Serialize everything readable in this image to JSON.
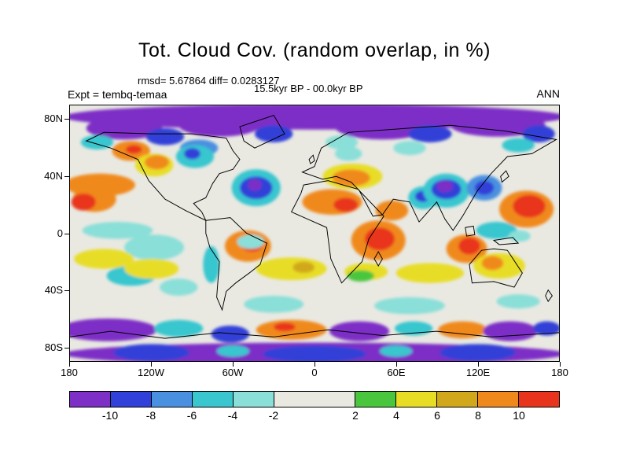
{
  "title": "Tot. Cloud Cov. (random overlap, in %)",
  "stats_line": "rmsd= 5.67864 diff= 0.0283127",
  "period_line": "15.5kyr BP - 00.0kyr BP",
  "experiment_label": "Expt = tembq-temaa",
  "season_label": "ANN",
  "chart_data": {
    "type": "filled_contour_map",
    "projection": "equirectangular",
    "title": "Tot. Cloud Cov. (random overlap, in %)",
    "units": "%",
    "lon_range": [
      -180,
      180
    ],
    "lat_range": [
      -90,
      90
    ],
    "x_ticks": [
      "180",
      "120W",
      "60W",
      "0",
      "60E",
      "120E",
      "180"
    ],
    "y_ticks": [
      "80N",
      "40N",
      "0",
      "40S",
      "80S"
    ],
    "y_tick_lats": [
      80,
      40,
      0,
      -40,
      -80
    ],
    "colorbar": {
      "labels": [
        "-10",
        "-8",
        "-6",
        "-4",
        "-2",
        "2",
        "4",
        "6",
        "8",
        "10"
      ],
      "colors": [
        "#7D2FC6",
        "#3140D8",
        "#4A90E0",
        "#39C6CF",
        "#8ADFD8",
        "#E9E9E2",
        "#49C63E",
        "#E8DD25",
        "#D1A81C",
        "#F0891C",
        "#E8341C"
      ],
      "widths": [
        1,
        1,
        1,
        1,
        1,
        2,
        1,
        1,
        1,
        1,
        1
      ],
      "neutral_color": "#E9E9E2"
    },
    "regions": [
      [
        180,
        8,
        185,
        9,
        0
      ],
      [
        40,
        16,
        28,
        8,
        0
      ],
      [
        110,
        14,
        30,
        8,
        0
      ],
      [
        230,
        15,
        35,
        9,
        0
      ],
      [
        315,
        14,
        35,
        8,
        0
      ],
      [
        70,
        22,
        14,
        6,
        1
      ],
      [
        150,
        20,
        14,
        6,
        1
      ],
      [
        265,
        20,
        16,
        6,
        1
      ],
      [
        345,
        20,
        12,
        6,
        1
      ],
      [
        20,
        26,
        12,
        5,
        3
      ],
      [
        95,
        30,
        14,
        6,
        2
      ],
      [
        200,
        26,
        12,
        5,
        4
      ],
      [
        205,
        34,
        10,
        5,
        4
      ],
      [
        250,
        30,
        12,
        5,
        4
      ],
      [
        330,
        28,
        12,
        5,
        3
      ],
      [
        45,
        32,
        14,
        7,
        9
      ],
      [
        47,
        31,
        6,
        3,
        10
      ],
      [
        22,
        56,
        26,
        8,
        9
      ],
      [
        18,
        66,
        16,
        9,
        9
      ],
      [
        10,
        68,
        9,
        6,
        10
      ],
      [
        62,
        42,
        14,
        8,
        7
      ],
      [
        64,
        40,
        9,
        5,
        9
      ],
      [
        92,
        36,
        14,
        8,
        3
      ],
      [
        90,
        34,
        6,
        4,
        1
      ],
      [
        137,
        58,
        18,
        13,
        3
      ],
      [
        137,
        58,
        12,
        8,
        1
      ],
      [
        136,
        56,
        5,
        4,
        0
      ],
      [
        208,
        50,
        22,
        9,
        7
      ],
      [
        207,
        51,
        14,
        6,
        9
      ],
      [
        193,
        68,
        22,
        9,
        9
      ],
      [
        203,
        70,
        9,
        5,
        10
      ],
      [
        237,
        74,
        12,
        7,
        9
      ],
      [
        260,
        65,
        11,
        8,
        3
      ],
      [
        260,
        64,
        6,
        4,
        1
      ],
      [
        227,
        95,
        20,
        14,
        9
      ],
      [
        228,
        94,
        11,
        8,
        10
      ],
      [
        277,
        60,
        17,
        12,
        3
      ],
      [
        277,
        59,
        11,
        7,
        1
      ],
      [
        276,
        57,
        6,
        4,
        0
      ],
      [
        305,
        58,
        13,
        9,
        2
      ],
      [
        305,
        58,
        7,
        5,
        1
      ],
      [
        336,
        73,
        20,
        13,
        9
      ],
      [
        338,
        71,
        12,
        8,
        10
      ],
      [
        131,
        99,
        17,
        11,
        9
      ],
      [
        134,
        98,
        8,
        5,
        10
      ],
      [
        104,
        112,
        6,
        13,
        3
      ],
      [
        133,
        96,
        10,
        5,
        4
      ],
      [
        163,
        115,
        26,
        8,
        7
      ],
      [
        172,
        114,
        8,
        4,
        8
      ],
      [
        218,
        117,
        16,
        6,
        7
      ],
      [
        214,
        120,
        10,
        4,
        6
      ],
      [
        265,
        118,
        25,
        7,
        7
      ],
      [
        292,
        101,
        15,
        10,
        9
      ],
      [
        294,
        99,
        8,
        6,
        10
      ],
      [
        316,
        113,
        19,
        9,
        7
      ],
      [
        311,
        111,
        8,
        5,
        9
      ],
      [
        314,
        88,
        15,
        6,
        3
      ],
      [
        331,
        92,
        8,
        4,
        4
      ],
      [
        35,
        88,
        26,
        6,
        4
      ],
      [
        62,
        100,
        22,
        9,
        4
      ],
      [
        45,
        120,
        18,
        7,
        3
      ],
      [
        80,
        128,
        14,
        6,
        4
      ],
      [
        25,
        108,
        22,
        7,
        7
      ],
      [
        60,
        115,
        20,
        7,
        7
      ],
      [
        150,
        140,
        22,
        6,
        4
      ],
      [
        250,
        141,
        26,
        6,
        4
      ],
      [
        330,
        138,
        16,
        5,
        4
      ],
      [
        28,
        158,
        36,
        8,
        0
      ],
      [
        80,
        157,
        18,
        6,
        3
      ],
      [
        118,
        161,
        14,
        6,
        1
      ],
      [
        163,
        158,
        26,
        7,
        9
      ],
      [
        158,
        156,
        8,
        3,
        10
      ],
      [
        213,
        159,
        22,
        7,
        0
      ],
      [
        253,
        157,
        14,
        5,
        3
      ],
      [
        289,
        158,
        18,
        6,
        9
      ],
      [
        324,
        159,
        20,
        7,
        0
      ],
      [
        351,
        157,
        10,
        5,
        1
      ],
      [
        180,
        175,
        185,
        8,
        0
      ],
      [
        60,
        174,
        28,
        6,
        1
      ],
      [
        180,
        175,
        38,
        6,
        1
      ],
      [
        300,
        174,
        28,
        6,
        1
      ],
      [
        120,
        173,
        12,
        4,
        3
      ],
      [
        240,
        173,
        12,
        4,
        3
      ]
    ],
    "coastlines": [
      "M12,25 L30,30 L50,38 L58,53 L70,66 L85,74 L100,81 L97,75 L91,69 L100,65 L105,55 L110,48 L120,45 L125,38 L120,32 L115,23 L90,20 L60,20 L25,19 Z",
      "M136,30 L158,20 L150,7 L125,15 L128,25 Z",
      "M100,81 L118,79 L130,90 L145,97 L140,112 L132,118 L122,125 L115,131 L112,144 L108,135 L110,110 L103,100 L100,90 Z",
      "M172,56 L190,53 L212,59 L231,78 L220,94 L215,110 L200,125 L192,108 L189,86 L163,75 L170,62 Z",
      "M171,47 L180,43 L185,30 L205,19 L280,14 L320,18 L358,24 L340,34 L322,36 L310,48 L300,60 L289,78 L282,88 L276,80 L270,68 L257,82 L250,68 L238,66 L230,77 L223,78 L213,60 L207,54 L196,50 L186,52 Z",
      "M294,112 L303,102 L312,101 L322,102 L333,118 L327,128 L312,124 L296,125 Z",
      "M0,163 L30,159 L70,164 L110,160 L150,163 L190,158 L230,162 L270,159 L310,163 L360,160",
      "M227,103 L230,108 L227,113 L224,108 Z",
      "M312,95 L326,93 L330,97 L316,98 Z",
      "M291,86 L297,85 L298,91 L292,92 Z",
      "M317,50 L321,46 L323,50 L318,54 Z",
      "M176,38 L179,35 L180,39 L177,41 Z",
      "M352,130 L355,134 L352,138 L350,134 Z"
    ]
  }
}
